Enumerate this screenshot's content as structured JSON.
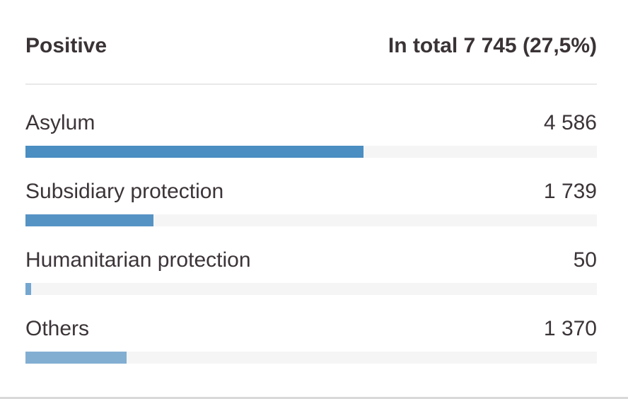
{
  "header": {
    "title": "Positive",
    "total_label": "In total 7 745 (27,5%)"
  },
  "rows": [
    {
      "label": "Asylum",
      "value_text": "4 586",
      "value": 4586,
      "bar_color": "#4a8ec2"
    },
    {
      "label": "Subsidiary protection",
      "value_text": "1 739",
      "value": 1739,
      "bar_color": "#5693c5"
    },
    {
      "label": "Humanitarian protection",
      "value_text": "50",
      "value": 50,
      "bar_color": "#74a7cf"
    },
    {
      "label": "Others",
      "value_text": "1 370",
      "value": 1370,
      "bar_color": "#82aed2"
    }
  ],
  "chart_data": {
    "type": "bar",
    "orientation": "horizontal",
    "title": "Positive",
    "subtitle": "In total 7 745 (27,5%)",
    "categories": [
      "Asylum",
      "Subsidiary protection",
      "Humanitarian protection",
      "Others"
    ],
    "values": [
      4586,
      1739,
      50,
      1370
    ],
    "total": 7745,
    "total_percent": 27.5,
    "xlim": [
      0,
      7745
    ],
    "grid": false,
    "legend": false,
    "bar_track_color": "#f5f5f5",
    "bar_colors": [
      "#4a8ec2",
      "#5693c5",
      "#74a7cf",
      "#82aed2"
    ],
    "text_color": "#3a3336",
    "background_color": "#ffffff"
  }
}
